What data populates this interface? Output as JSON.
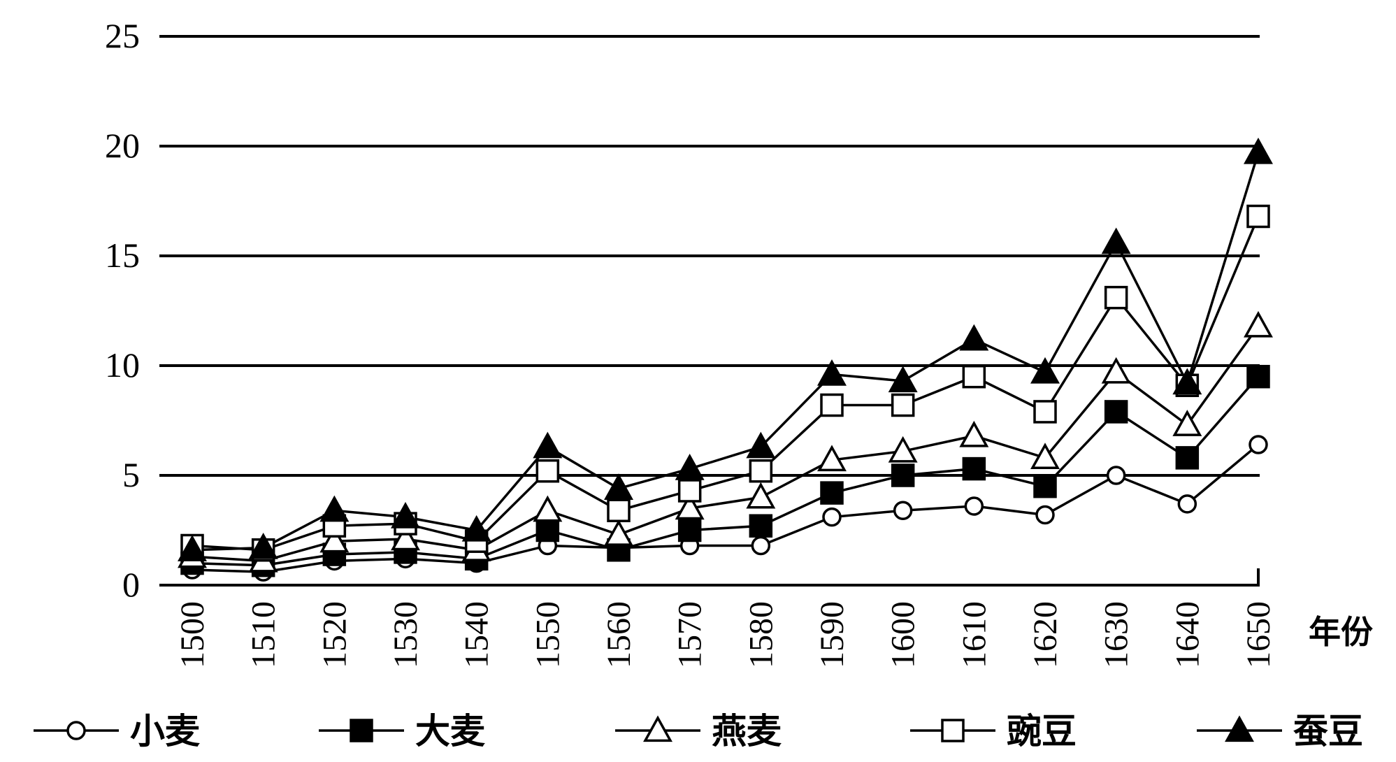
{
  "chart_data": {
    "type": "line",
    "title": "",
    "xlabel": "年份",
    "ylabel": "",
    "ylim": [
      0,
      25
    ],
    "yticks": [
      0,
      5,
      10,
      15,
      20,
      25
    ],
    "grid": true,
    "legend_position": "bottom",
    "x": [
      1500,
      1510,
      1520,
      1530,
      1540,
      1550,
      1560,
      1570,
      1580,
      1590,
      1600,
      1610,
      1620,
      1630,
      1640,
      1650
    ],
    "series": [
      {
        "name": "小麦",
        "marker": "circle-open",
        "values": [
          0.7,
          0.6,
          1.1,
          1.2,
          1.0,
          1.8,
          1.7,
          1.8,
          1.8,
          3.1,
          3.4,
          3.6,
          3.2,
          5.0,
          3.7,
          6.4
        ]
      },
      {
        "name": "大麦",
        "marker": "square-filled",
        "values": [
          1.0,
          0.9,
          1.4,
          1.5,
          1.2,
          2.5,
          1.6,
          2.5,
          2.7,
          4.2,
          5.0,
          5.3,
          4.5,
          7.9,
          5.8,
          9.5
        ]
      },
      {
        "name": "燕麦",
        "marker": "triangle-open",
        "values": [
          1.3,
          1.1,
          2.0,
          2.1,
          1.6,
          3.4,
          2.3,
          3.5,
          4.0,
          5.7,
          6.1,
          6.8,
          5.8,
          9.7,
          7.3,
          11.8
        ]
      },
      {
        "name": "豌豆",
        "marker": "square-open",
        "values": [
          1.8,
          1.6,
          2.7,
          2.8,
          2.0,
          5.2,
          3.4,
          4.3,
          5.2,
          8.2,
          8.2,
          9.5,
          7.9,
          13.1,
          9.1,
          16.8
        ]
      },
      {
        "name": "蚕豆",
        "marker": "triangle-filled",
        "values": [
          1.6,
          1.7,
          3.4,
          3.1,
          2.5,
          6.3,
          4.4,
          5.3,
          6.3,
          9.6,
          9.3,
          11.2,
          9.7,
          15.6,
          9.2,
          19.7
        ]
      }
    ]
  }
}
